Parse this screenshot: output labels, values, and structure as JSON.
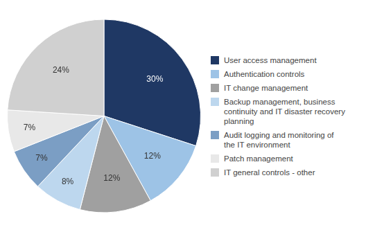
{
  "chart_data": {
    "type": "pie",
    "categories": [
      "User access management",
      "Authentication controls",
      "IT change management",
      "Backup management, business\ncontinuity and IT disaster recovery\nplanning",
      "Audit logging and monitoring of\nthe IT environment",
      "Patch management",
      "IT general controls  - other"
    ],
    "values": [
      30,
      12,
      12,
      8,
      7,
      7,
      24
    ],
    "value_labels": [
      "30%",
      "12%",
      "12%",
      "8%",
      "7%",
      "7%",
      "24%"
    ],
    "colors": [
      "#1F3864",
      "#9DC3E6",
      "#A0A0A0",
      "#BDD7EE",
      "#7B9EC4",
      "#E8E8E8",
      "#D0D0D0"
    ],
    "data_labels": true,
    "legend": "right"
  }
}
